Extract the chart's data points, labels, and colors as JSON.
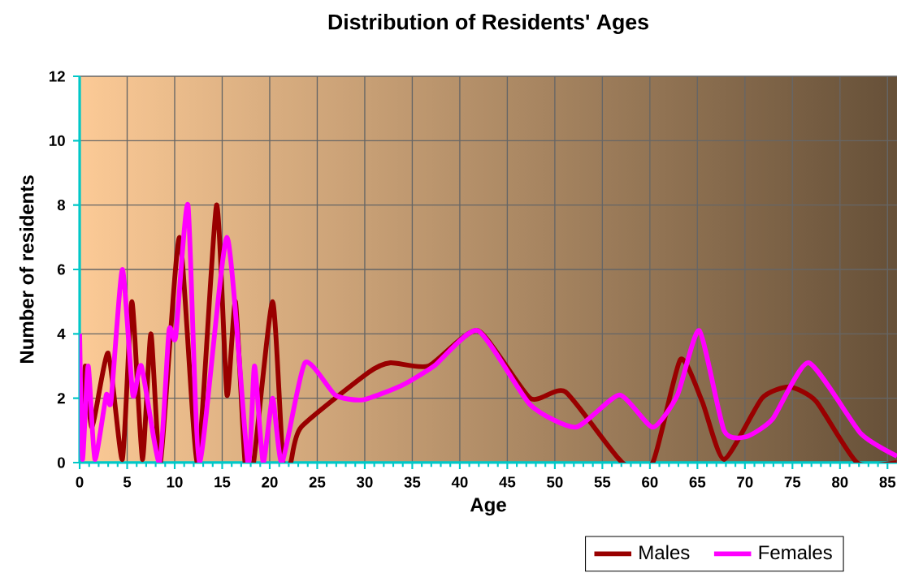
{
  "chart_data": {
    "type": "line",
    "title": "Distribution of Residents' Ages",
    "xlabel": "Age",
    "ylabel": "Number of residents",
    "xlim": [
      0,
      86
    ],
    "xticks": [
      0,
      5,
      10,
      15,
      20,
      25,
      30,
      35,
      40,
      45,
      50,
      55,
      60,
      65,
      70,
      75,
      80,
      85
    ],
    "ylim": [
      0,
      12
    ],
    "yticks": [
      0,
      2,
      4,
      6,
      8,
      10,
      12
    ],
    "grid": true,
    "legend": "bottom right",
    "marker": "none",
    "line_style": "solid",
    "series": [
      {
        "name": "Males",
        "color": "#990000",
        "x": [
          0,
          0.3,
          0.6,
          1.3,
          3.0,
          4.5,
          5.5,
          6.6,
          7.5,
          8.5,
          10.5,
          12.4,
          14.4,
          15.5,
          16.4,
          17.4,
          18.3,
          20.3,
          21.4,
          22.2,
          23.3,
          30.4,
          32.7,
          36.7,
          41.9,
          47.4,
          51.1,
          57.1,
          60.3,
          63.2,
          65.5,
          67.8,
          71.8,
          74.7,
          77.5,
          81.8,
          86
        ],
        "values": [
          2.1,
          1.3,
          3,
          1.1,
          3.4,
          0.1,
          5,
          0.1,
          4,
          0,
          7,
          0,
          8,
          2.1,
          5,
          0,
          0,
          5,
          0,
          0,
          1.1,
          2.8,
          3.1,
          3,
          4.1,
          2,
          2.2,
          0,
          0,
          3.2,
          1.9,
          0.1,
          2,
          2.35,
          1.9,
          0,
          0
        ]
      },
      {
        "name": "Females",
        "color": "#ff00ff",
        "x": [
          0,
          0.3,
          0.9,
          1.6,
          2.8,
          3.3,
          4.5,
          5.6,
          6.5,
          8.4,
          9.4,
          10.1,
          11.4,
          12.6,
          15.5,
          17.7,
          18.4,
          19.3,
          20.3,
          21.3,
          23.7,
          26.9,
          29.8,
          33.9,
          37.3,
          41.9,
          47.4,
          52.2,
          56.8,
          60.3,
          62.9,
          65.2,
          67.8,
          70.1,
          72.9,
          76.7,
          82.2,
          86
        ],
        "values": [
          4,
          0.1,
          3,
          0.1,
          2.1,
          1.9,
          6,
          2.1,
          3,
          0,
          4.1,
          3.9,
          8,
          0,
          7,
          0,
          3,
          0,
          2,
          0,
          3.1,
          2.1,
          1.95,
          2.4,
          3,
          4.1,
          1.8,
          1.1,
          2.1,
          1.1,
          2.1,
          4.1,
          1,
          0.8,
          1.35,
          3.1,
          0.9,
          0.2
        ]
      }
    ]
  }
}
